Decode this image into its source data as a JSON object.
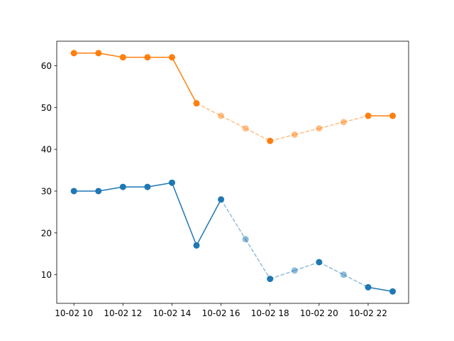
{
  "chart_data": {
    "type": "line",
    "x": [
      "10-02 10",
      "10-02 11",
      "10-02 12",
      "10-02 13",
      "10-02 14",
      "10-02 15",
      "10-02 16",
      "10-02 17",
      "10-02 18",
      "10-02 19",
      "10-02 20",
      "10-02 21",
      "10-02 22",
      "10-02 23"
    ],
    "x_hours": [
      10,
      11,
      12,
      13,
      14,
      15,
      16,
      17,
      18,
      19,
      20,
      21,
      22,
      23
    ],
    "x_tick_hours": [
      10,
      12,
      14,
      16,
      18,
      20,
      22
    ],
    "x_tick_labels": [
      "10-02 10",
      "10-02 12",
      "10-02 14",
      "10-02 16",
      "10-02 18",
      "10-02 20",
      "10-02 22"
    ],
    "y_ticks": [
      10,
      20,
      30,
      40,
      50,
      60
    ],
    "y_tick_labels": [
      "10",
      "20",
      "30",
      "40",
      "50",
      "60"
    ],
    "xlim": [
      9.3,
      23.65
    ],
    "ylim": [
      3.15,
      65.85
    ],
    "grid": false,
    "series": [
      {
        "color": "#1f77b4",
        "values": [
          30,
          30,
          31,
          31,
          32,
          17,
          28,
          18.5,
          9,
          11,
          13,
          10,
          7,
          6
        ],
        "observed": [
          true,
          true,
          true,
          true,
          true,
          true,
          true,
          false,
          true,
          false,
          true,
          false,
          true,
          true
        ]
      },
      {
        "color": "#ff7f0e",
        "values": [
          63,
          63,
          62,
          62,
          62,
          51,
          48,
          45,
          42,
          43.5,
          45,
          46.5,
          48,
          48
        ],
        "observed": [
          true,
          true,
          true,
          true,
          true,
          true,
          false,
          false,
          true,
          false,
          false,
          false,
          true,
          true
        ]
      }
    ]
  }
}
